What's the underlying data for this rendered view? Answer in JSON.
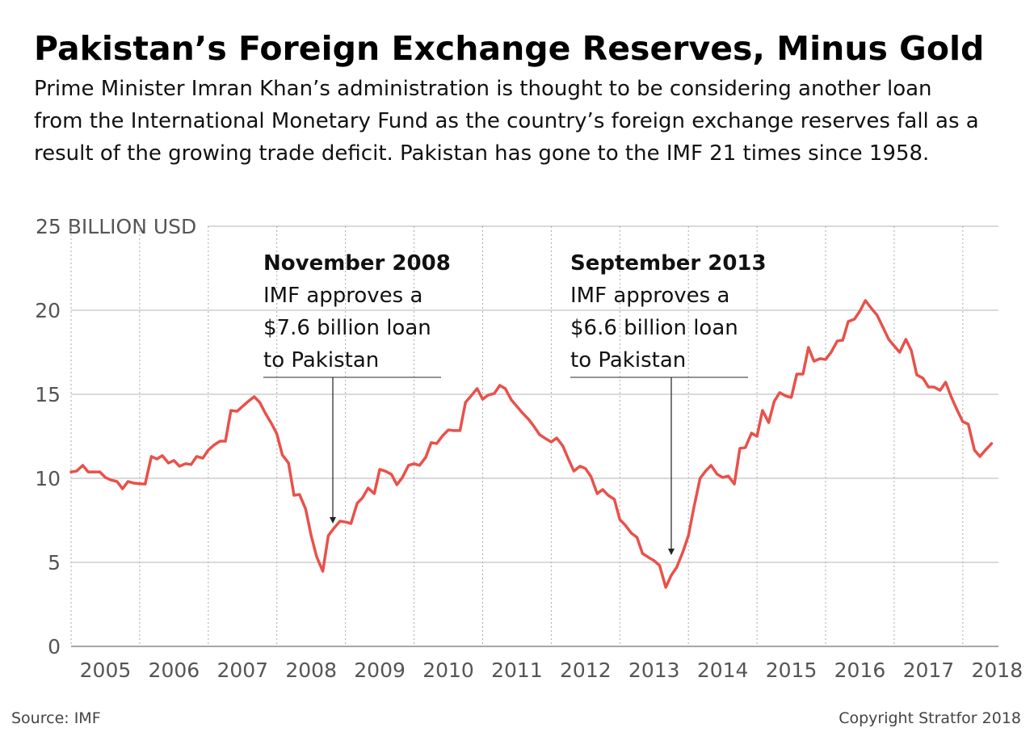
{
  "chart_data": {
    "type": "line",
    "title": "Pakistan’s Foreign Exchange Reserves, Minus Gold",
    "subtitle": [
      "Prime Minister Imran Khan’s administration is thought to be considering another loan",
      "from the International Monetary Fund as the country’s foreign exchange reserves fall as a",
      "result of the growing trade deficit. Pakistan has gone to the IMF 21 times since 1958."
    ],
    "source": "Source: IMF",
    "copyright": "Copyright Stratfor 2018",
    "color": "#e8514a",
    "x": [
      2005,
      2005.08,
      2005.17,
      2005.25,
      2005.33,
      2005.42,
      2005.5,
      2005.58,
      2005.67,
      2005.75,
      2005.83,
      2005.92,
      2006,
      2006.08,
      2006.17,
      2006.25,
      2006.33,
      2006.42,
      2006.5,
      2006.58,
      2006.67,
      2006.75,
      2006.83,
      2006.92,
      2007,
      2007.08,
      2007.17,
      2007.25,
      2007.33,
      2007.42,
      2007.5,
      2007.58,
      2007.67,
      2007.75,
      2007.83,
      2007.92,
      2008,
      2008.08,
      2008.17,
      2008.25,
      2008.33,
      2008.42,
      2008.5,
      2008.58,
      2008.67,
      2008.75,
      2008.83,
      2008.92,
      2009,
      2009.08,
      2009.17,
      2009.25,
      2009.33,
      2009.42,
      2009.5,
      2009.58,
      2009.67,
      2009.75,
      2009.83,
      2009.92,
      2010,
      2010.08,
      2010.17,
      2010.25,
      2010.33,
      2010.42,
      2010.5,
      2010.58,
      2010.67,
      2010.75,
      2010.83,
      2010.92,
      2011,
      2011.08,
      2011.17,
      2011.25,
      2011.33,
      2011.42,
      2011.5,
      2011.58,
      2011.67,
      2011.75,
      2011.83,
      2011.92,
      2012,
      2012.08,
      2012.17,
      2012.25,
      2012.33,
      2012.42,
      2012.5,
      2012.58,
      2012.67,
      2012.75,
      2012.83,
      2012.92,
      2013,
      2013.08,
      2013.17,
      2013.25,
      2013.33,
      2013.42,
      2013.5,
      2013.58,
      2013.67,
      2013.75,
      2013.83,
      2013.92,
      2014,
      2014.08,
      2014.17,
      2014.25,
      2014.33,
      2014.42,
      2014.5,
      2014.58,
      2014.67,
      2014.75,
      2014.83,
      2014.92,
      2015,
      2015.08,
      2015.17,
      2015.25,
      2015.33,
      2015.42,
      2015.5,
      2015.58,
      2015.67,
      2015.75,
      2015.83,
      2015.92,
      2016,
      2016.08,
      2016.17,
      2016.25,
      2016.33,
      2016.42,
      2016.5,
      2016.58,
      2016.67,
      2016.75,
      2016.83,
      2016.92,
      2017,
      2017.08,
      2017.17,
      2017.25,
      2017.33,
      2017.42,
      2017.5,
      2017.58,
      2017.67,
      2017.75,
      2017.83,
      2017.92,
      2018,
      2018.08,
      2018.17,
      2018.25,
      2018.33,
      2018.42
    ],
    "values": [
      10.38,
      10.43,
      10.77,
      10.38,
      10.38,
      10.38,
      10.05,
      9.9,
      9.81,
      9.38,
      9.81,
      9.71,
      9.68,
      9.66,
      11.3,
      11.15,
      11.35,
      10.91,
      11.06,
      10.72,
      10.87,
      10.82,
      11.3,
      11.2,
      11.68,
      11.97,
      12.21,
      12.21,
      14.04,
      13.99,
      14.28,
      14.57,
      14.86,
      14.52,
      13.89,
      13.27,
      12.64,
      11.39,
      10.91,
      8.99,
      9.04,
      8.17,
      6.59,
      5.34,
      4.47,
      6.59,
      7.02,
      7.45,
      7.4,
      7.31,
      8.51,
      8.85,
      9.42,
      9.09,
      10.53,
      10.43,
      10.24,
      9.62,
      10.05,
      10.77,
      10.87,
      10.77,
      11.25,
      12.12,
      12.07,
      12.55,
      12.88,
      12.84,
      12.84,
      14.52,
      14.9,
      15.34,
      14.71,
      14.95,
      15.05,
      15.53,
      15.34,
      14.66,
      14.28,
      13.89,
      13.51,
      13.08,
      12.6,
      12.36,
      12.16,
      12.4,
      11.92,
      11.15,
      10.43,
      10.72,
      10.58,
      10.1,
      9.09,
      9.33,
      8.99,
      8.75,
      7.55,
      7.21,
      6.73,
      6.49,
      5.53,
      5.29,
      5.1,
      4.81,
      3.51,
      4.23,
      4.71,
      5.63,
      6.59,
      8.27,
      10.0,
      10.43,
      10.77,
      10.24,
      10.05,
      10.14,
      9.66,
      11.78,
      11.83,
      12.69,
      12.5,
      14.04,
      13.32,
      14.57,
      15.1,
      14.9,
      14.81,
      16.2,
      16.2,
      17.79,
      16.97,
      17.12,
      17.07,
      17.5,
      18.17,
      18.22,
      19.33,
      19.47,
      19.95,
      20.58,
      20.1,
      19.71,
      19.04,
      18.27,
      17.88,
      17.5,
      18.27,
      17.6,
      16.15,
      15.96,
      15.43,
      15.43,
      15.24,
      15.72,
      14.86,
      14.04,
      13.37,
      13.22,
      11.68,
      11.3,
      11.68,
      12.07
    ],
    "xlim": [
      2005,
      2018.52
    ],
    "xticks": [
      {
        "value": 2005.5,
        "label": "2005"
      },
      {
        "value": 2006.5,
        "label": "2006"
      },
      {
        "value": 2007.5,
        "label": "2007"
      },
      {
        "value": 2008.5,
        "label": "2008"
      },
      {
        "value": 2009.5,
        "label": "2009"
      },
      {
        "value": 2010.5,
        "label": "2010"
      },
      {
        "value": 2011.5,
        "label": "2011"
      },
      {
        "value": 2012.5,
        "label": "2012"
      },
      {
        "value": 2013.5,
        "label": "2013"
      },
      {
        "value": 2014.5,
        "label": "2014"
      },
      {
        "value": 2015.5,
        "label": "2015"
      },
      {
        "value": 2016.5,
        "label": "2016"
      },
      {
        "value": 2017.5,
        "label": "2017"
      },
      {
        "value": 2018.5,
        "label": "2018"
      }
    ],
    "ylim": [
      0,
      25
    ],
    "yticks": [
      0,
      5,
      10,
      15,
      20,
      {
        "value": 25,
        "label": "25 BILLION USD"
      }
    ],
    "grid": true,
    "annotations": [
      {
        "title": "November 2008",
        "lines": [
          "IMF approves a",
          "$7.6 billion loan",
          "to Pakistan"
        ]
      },
      {
        "title": "September 2013",
        "lines": [
          "IMF approves a",
          "$6.6 billion loan",
          "to Pakistan"
        ]
      }
    ]
  }
}
